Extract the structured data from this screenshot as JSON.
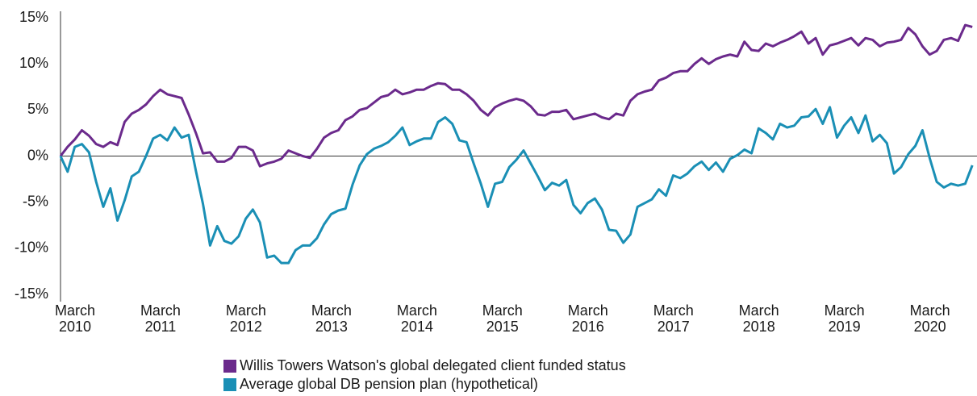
{
  "chart_data": {
    "type": "line",
    "categories": [
      "March 2010",
      null,
      null,
      null,
      null,
      null,
      null,
      null,
      null,
      null,
      null,
      null,
      "March 2011",
      null,
      null,
      null,
      null,
      null,
      null,
      null,
      null,
      null,
      null,
      null,
      "March 2012",
      null,
      null,
      null,
      null,
      null,
      null,
      null,
      null,
      null,
      null,
      null,
      "March 2013",
      null,
      null,
      null,
      null,
      null,
      null,
      null,
      null,
      null,
      null,
      null,
      "March 2014",
      null,
      null,
      null,
      null,
      null,
      null,
      null,
      null,
      null,
      null,
      null,
      "March 2015",
      null,
      null,
      null,
      null,
      null,
      null,
      null,
      null,
      null,
      null,
      null,
      "March 2016",
      null,
      null,
      null,
      null,
      null,
      null,
      null,
      null,
      null,
      null,
      null,
      "March 2017",
      null,
      null,
      null,
      null,
      null,
      null,
      null,
      null,
      null,
      null,
      null,
      "March 2018",
      null,
      null,
      null,
      null,
      null,
      null,
      null,
      null,
      null,
      null,
      null,
      "March 2019",
      null,
      null,
      null,
      null,
      null,
      null,
      null,
      null,
      null,
      null,
      null,
      "March 2020",
      null,
      null,
      null,
      null,
      null,
      null,
      null,
      null
    ],
    "series": [
      {
        "name": "Willis Towers Watson's global delegated client funded status",
        "color": "#6b2a8c",
        "values": [
          0,
          1.0,
          1.8,
          2.8,
          2.2,
          1.3,
          1.0,
          1.5,
          1.2,
          3.7,
          4.6,
          5.0,
          5.6,
          6.5,
          7.2,
          6.7,
          6.5,
          6.3,
          4.5,
          2.5,
          0.3,
          0.4,
          -0.6,
          -0.6,
          -0.2,
          1.0,
          1.0,
          0.6,
          -1.1,
          -0.8,
          -0.6,
          -0.3,
          0.6,
          0.3,
          0.0,
          -0.2,
          0.8,
          2.0,
          2.5,
          2.8,
          3.9,
          4.3,
          5.0,
          5.2,
          5.8,
          6.4,
          6.6,
          7.2,
          6.7,
          6.9,
          7.2,
          7.2,
          7.6,
          7.9,
          7.8,
          7.2,
          7.2,
          6.7,
          6.0,
          5.0,
          4.4,
          5.3,
          5.7,
          6.0,
          6.2,
          6.0,
          5.4,
          4.5,
          4.4,
          4.8,
          4.8,
          5.0,
          4.0,
          4.2,
          4.4,
          4.6,
          4.2,
          4.0,
          4.6,
          4.4,
          6.0,
          6.7,
          7.0,
          7.2,
          8.2,
          8.5,
          9.0,
          9.2,
          9.2,
          10.0,
          10.6,
          10.0,
          10.5,
          10.8,
          11.0,
          10.8,
          12.4,
          11.5,
          11.4,
          12.2,
          11.9,
          12.3,
          12.6,
          13.0,
          13.5,
          12.2,
          12.8,
          11.0,
          12.0,
          12.2,
          12.5,
          12.8,
          12.0,
          12.8,
          12.6,
          11.9,
          12.3,
          12.4,
          12.6,
          13.9,
          13.2,
          11.9,
          11.0,
          11.4,
          12.6,
          12.8,
          12.5,
          14.2,
          14.0
        ]
      },
      {
        "name": "Average global DB pension plan (hypothetical)",
        "color": "#1a8fb5",
        "values": [
          0,
          -1.7,
          1.0,
          1.3,
          0.4,
          -2.8,
          -5.5,
          -3.5,
          -7.0,
          -4.8,
          -2.2,
          -1.7,
          0.0,
          1.9,
          2.3,
          1.7,
          3.1,
          2.0,
          2.3,
          -1.6,
          -5.2,
          -9.7,
          -7.6,
          -9.2,
          -9.5,
          -8.7,
          -6.8,
          -5.8,
          -7.2,
          -11.0,
          -10.8,
          -11.6,
          -11.6,
          -10.2,
          -9.7,
          -9.7,
          -8.9,
          -7.4,
          -6.3,
          -5.9,
          -5.7,
          -3.1,
          -1.0,
          0.2,
          0.8,
          1.1,
          1.5,
          2.2,
          3.1,
          1.2,
          1.6,
          1.9,
          1.9,
          3.7,
          4.2,
          3.5,
          1.7,
          1.5,
          -0.8,
          -3.0,
          -5.5,
          -3.0,
          -2.8,
          -1.2,
          -0.4,
          0.6,
          -0.8,
          -2.2,
          -3.7,
          -2.9,
          -3.2,
          -2.6,
          -5.3,
          -6.2,
          -5.1,
          -4.6,
          -5.8,
          -8.0,
          -8.1,
          -9.4,
          -8.5,
          -5.5,
          -5.1,
          -4.7,
          -3.6,
          -4.3,
          -2.1,
          -2.4,
          -1.9,
          -1.1,
          -0.6,
          -1.5,
          -0.7,
          -1.7,
          -0.3,
          0.1,
          0.7,
          0.3,
          3.0,
          2.5,
          1.8,
          3.5,
          3.1,
          3.3,
          4.2,
          4.3,
          5.1,
          3.5,
          5.3,
          2.0,
          3.3,
          4.2,
          2.5,
          4.4,
          1.6,
          2.3,
          1.4,
          -1.9,
          -1.2,
          0.2,
          1.1,
          2.8,
          -0.2,
          -2.8,
          -3.4,
          -3.0,
          -3.2,
          -3.0,
          -1.0
        ]
      }
    ],
    "ylim": [
      -15,
      15
    ],
    "yticks": [
      {
        "value": 15,
        "label": "15%"
      },
      {
        "value": 10,
        "label": "10%"
      },
      {
        "value": 5,
        "label": "5%"
      },
      {
        "value": 0,
        "label": "0%"
      },
      {
        "value": -5,
        "label": "-5%"
      },
      {
        "value": -10,
        "label": "-10%"
      },
      {
        "value": -15,
        "label": "-15%"
      }
    ],
    "grid": false,
    "legend": "bottom"
  }
}
